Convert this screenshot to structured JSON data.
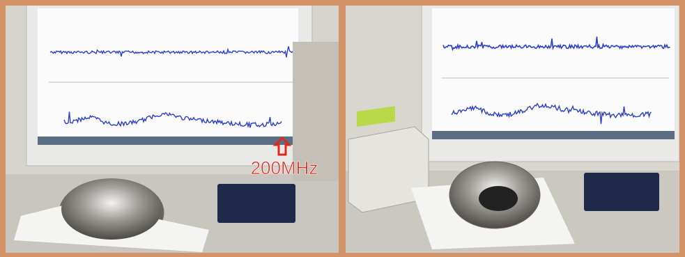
{
  "annotation": "200MHz"
}
